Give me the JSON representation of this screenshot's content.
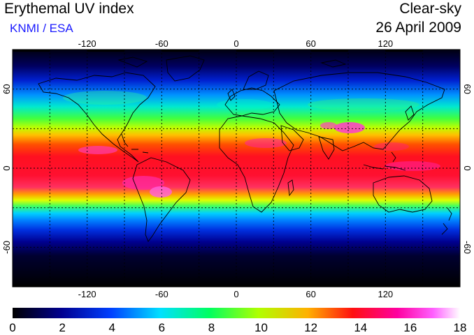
{
  "header": {
    "title": "Erythemal UV index",
    "credit": "KNMI / ESA",
    "sky_condition": "Clear-sky",
    "date": "26 April 2009"
  },
  "map": {
    "longitude_labels": [
      {
        "value": -120,
        "label": "-120"
      },
      {
        "value": -60,
        "label": "-60"
      },
      {
        "value": 0,
        "label": "0"
      },
      {
        "value": 60,
        "label": "60"
      },
      {
        "value": 120,
        "label": "120"
      }
    ],
    "latitude_labels": [
      {
        "value": 60,
        "label": "60"
      },
      {
        "value": 0,
        "label": "0"
      },
      {
        "value": -60,
        "label": "-60"
      }
    ],
    "gridlines": "dotted, every 30 degrees",
    "lon_range": [
      -180,
      180
    ],
    "lat_range": [
      -90,
      90
    ],
    "coastlines": "black outline of continents"
  },
  "colorbar": {
    "min": 0,
    "max": 18,
    "tick_labels": [
      "0",
      "2",
      "4",
      "6",
      "8",
      "10",
      "12",
      "14",
      "16",
      "18"
    ],
    "colors": [
      "#000000",
      "#000090",
      "#0040ff",
      "#00e0ff",
      "#00ff60",
      "#b0ff00",
      "#ffb000",
      "#ff1010",
      "#ff00a0",
      "#ff60ff",
      "#ffffff"
    ]
  },
  "colors": {
    "credit_text": "#1a1aff",
    "outline": "#000000"
  }
}
